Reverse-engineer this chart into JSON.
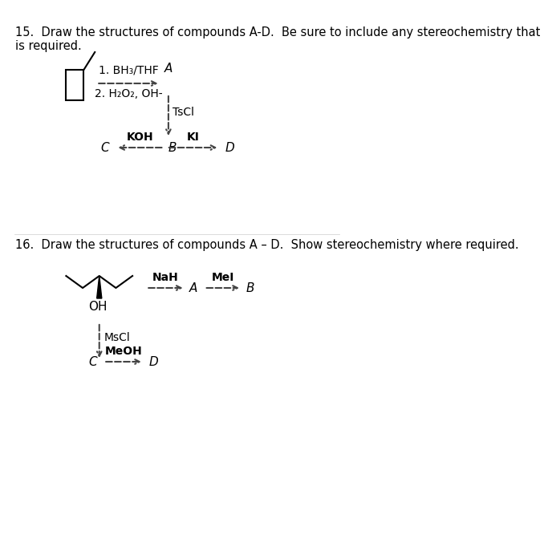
{
  "bg_color": "#ffffff",
  "q15_title": "15.  Draw the structures of compounds A-D.  Be sure to include any stereochemistry that\nis required.",
  "q16_title": "16.  Draw the structures of compounds A – D.  Show stereochemistry where required.",
  "q15": {
    "reagent1": "1. BH₃/THF",
    "reagent2": "2. H₂O₂, OH-",
    "label_A": "A",
    "reagent_TsCl": "TsCl",
    "label_B": "B",
    "label_C": "C",
    "label_D": "D",
    "reagent_KOH": "KOH",
    "reagent_KI": "KI"
  },
  "q16": {
    "reagent_NaH": "NaH",
    "reagent_MeI": "MeI",
    "label_A": "A",
    "label_B": "B",
    "label_C": "C",
    "label_D": "D",
    "reagent_MsCl": "MsCl",
    "reagent_MeOH": "MeOH",
    "label_OH": "OH"
  },
  "font_family": "DejaVu Sans",
  "title_fontsize": 10.5,
  "label_fontsize": 11,
  "reagent_fontsize": 10
}
